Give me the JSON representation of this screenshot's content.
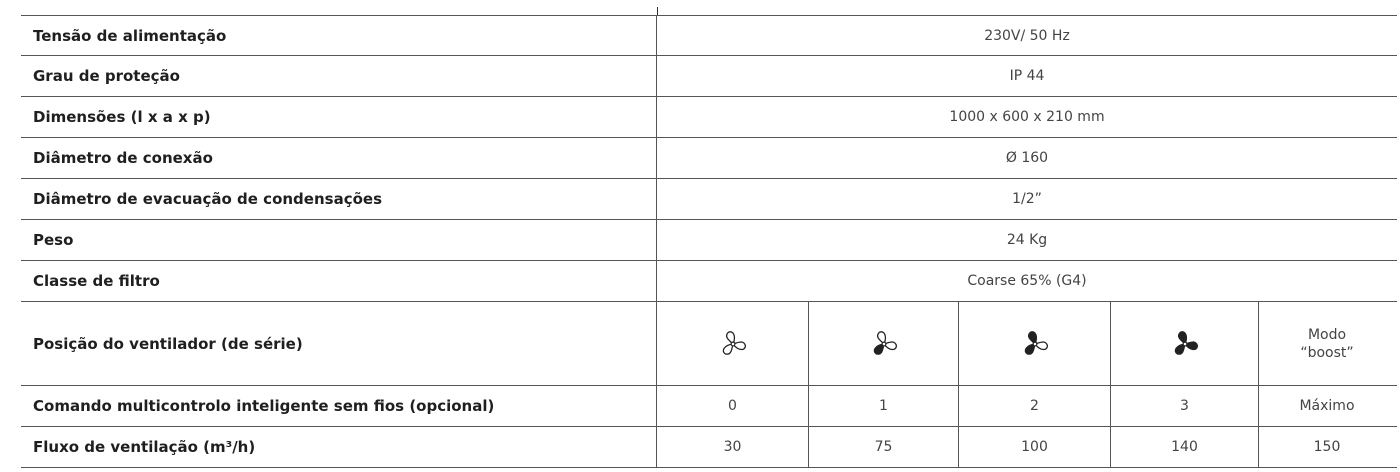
{
  "rows": [
    {
      "label": "Tensão de alimentação",
      "value": "230V/ 50 Hz"
    },
    {
      "label": "Grau de proteção",
      "value": "IP 44"
    },
    {
      "label": "Dimensões (l x a x p)",
      "value": "1000 x 600 x 210 mm"
    },
    {
      "label": "Diâmetro de conexão",
      "value": "Ø 160"
    },
    {
      "label": "Diâmetro de evacuação de condensações",
      "value": "1/2”"
    },
    {
      "label": "Peso",
      "value": "24 Kg"
    },
    {
      "label": "Classe de filtro",
      "value": "Coarse 65% (G4)"
    }
  ],
  "fan_row": {
    "label": "Posição do ventilador (de série)",
    "icons": [
      "fan-level-0-icon",
      "fan-level-1-icon",
      "fan-level-2-icon",
      "fan-level-3-icon"
    ],
    "boost_line1": "Modo",
    "boost_line2": "“boost”"
  },
  "control_row": {
    "label": "Comando multicontrolo inteligente sem fios (opcional)",
    "values": [
      "0",
      "1",
      "2",
      "3",
      "Máximo"
    ]
  },
  "flow_row": {
    "label": "Fluxo de ventilação (m³/h)",
    "values": [
      "30",
      "75",
      "100",
      "140",
      "150"
    ]
  }
}
